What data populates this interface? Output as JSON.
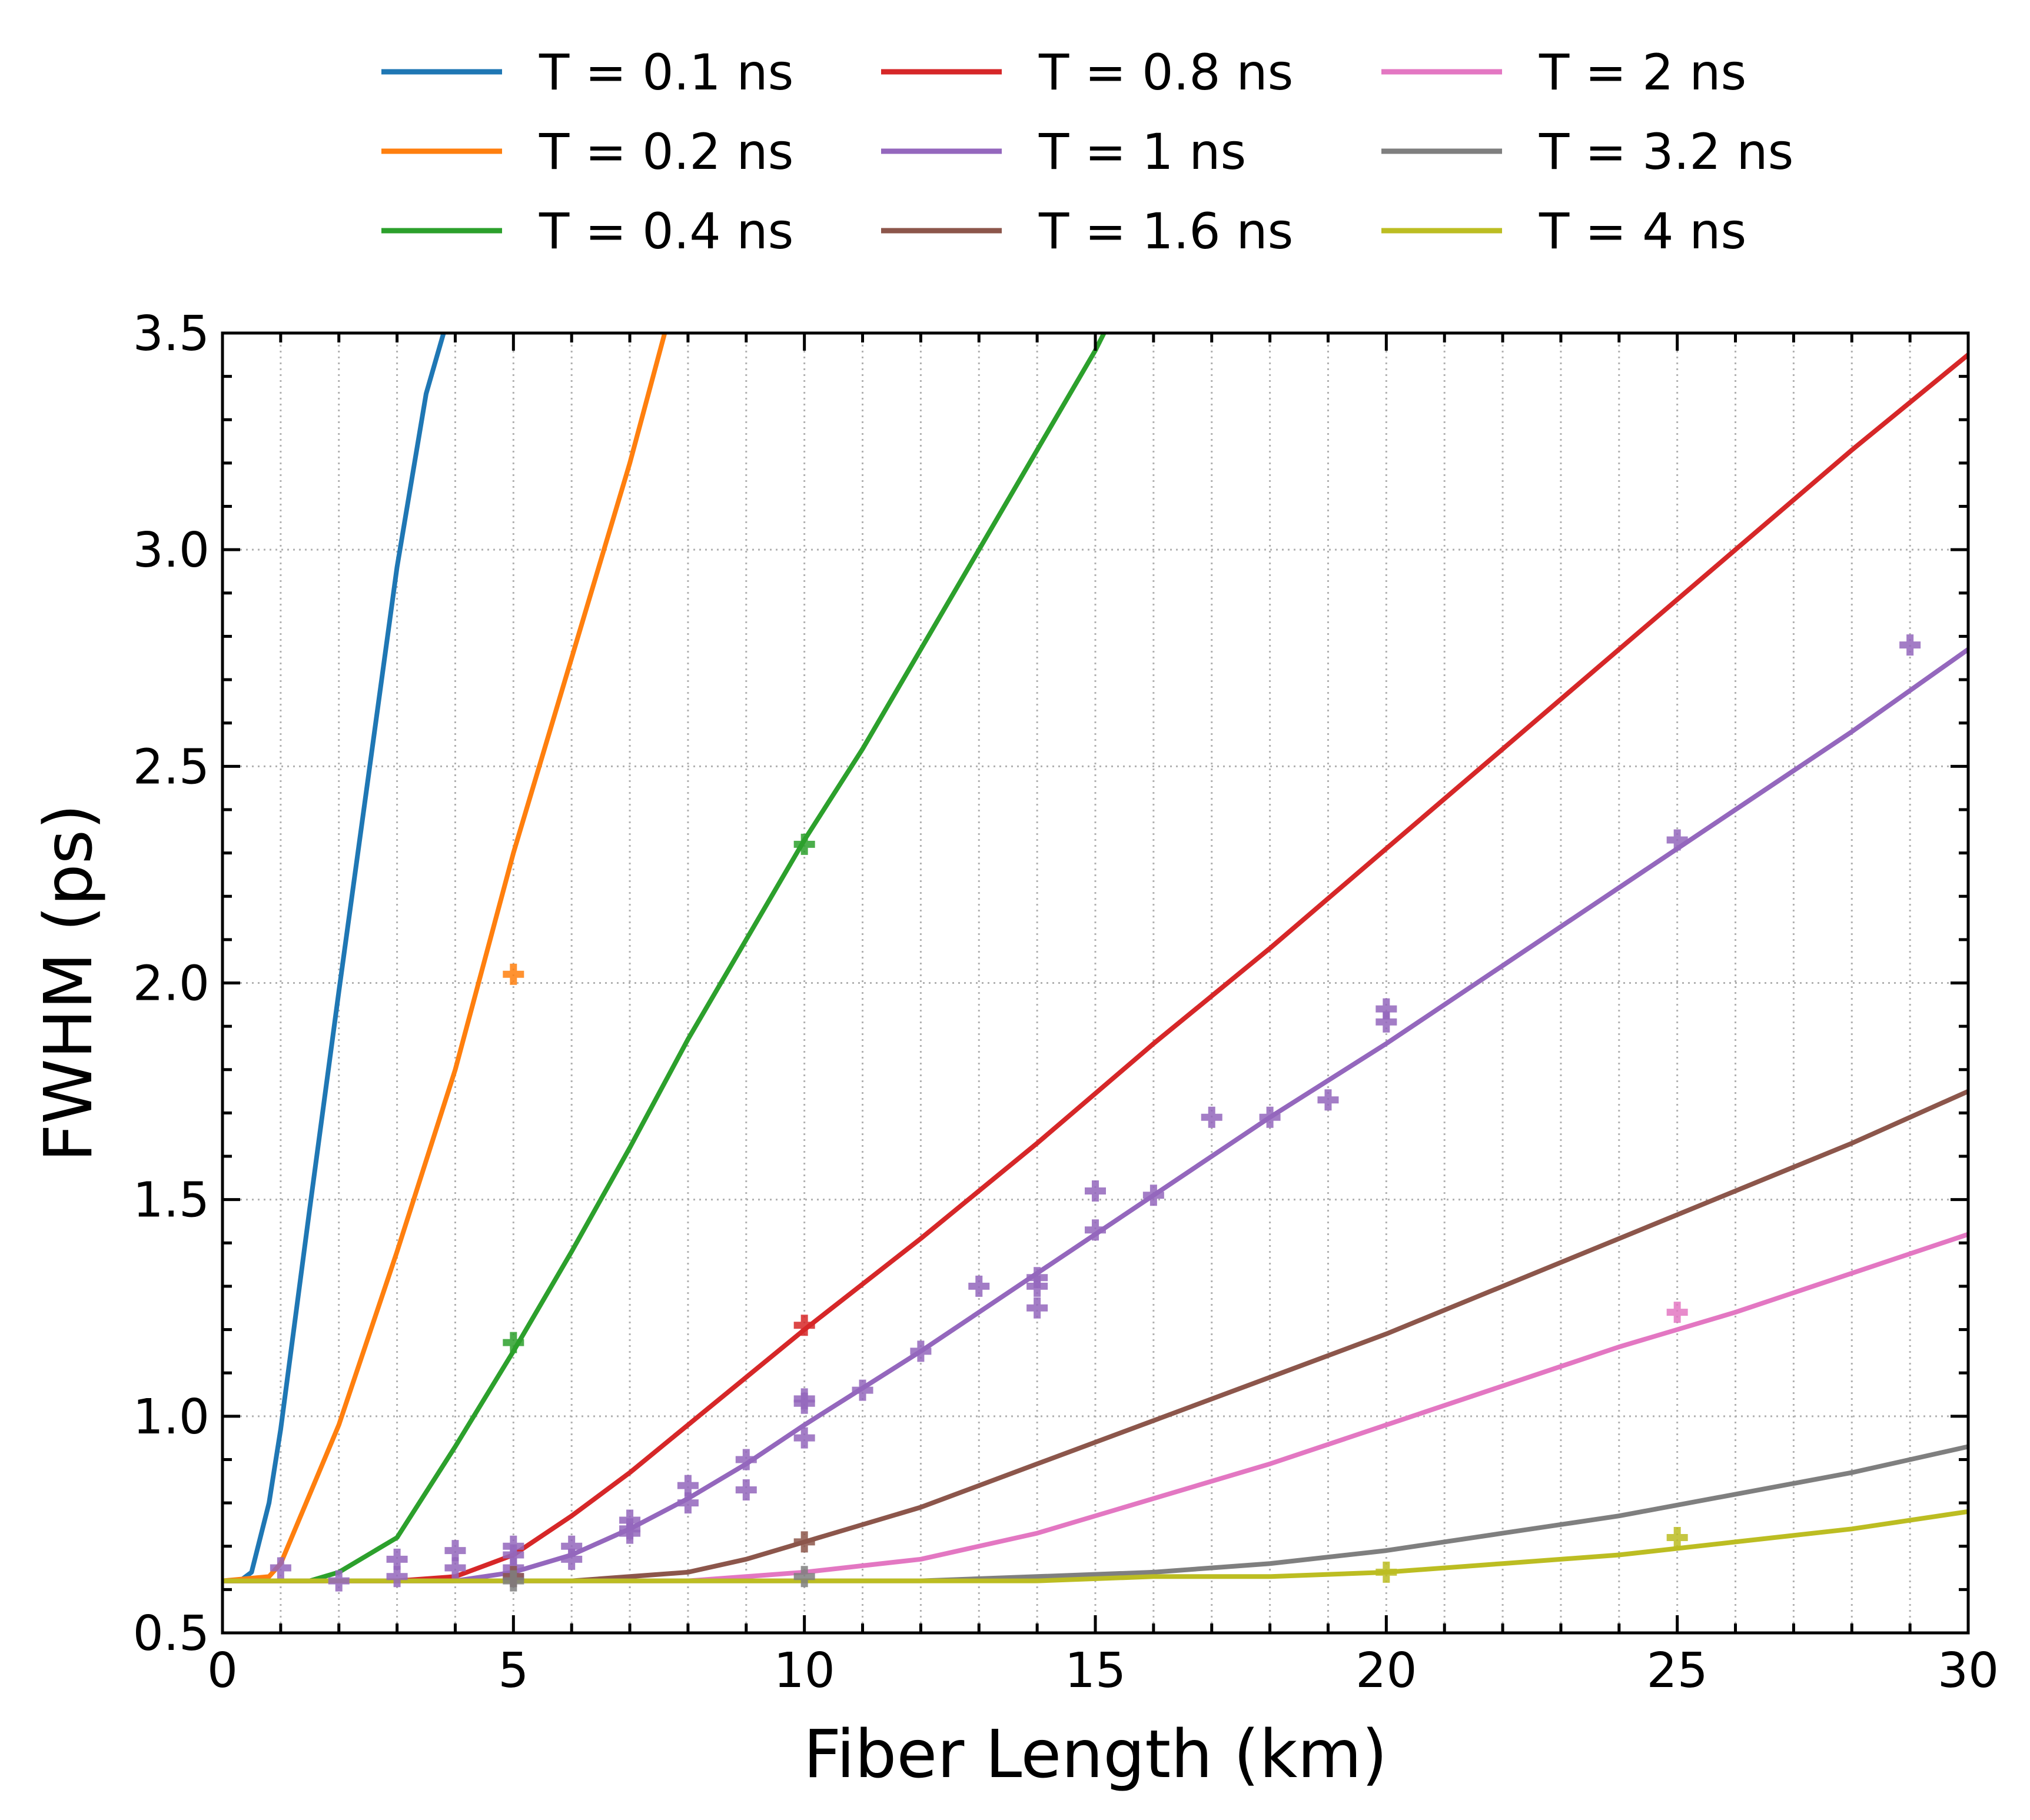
{
  "chart_data": {
    "type": "line",
    "title": "",
    "xlabel": "Fiber Length (km)",
    "ylabel": "FWHM (ps)",
    "xlim": [
      0,
      30
    ],
    "ylim": [
      0.5,
      3.5
    ],
    "xticks": [
      0,
      5,
      10,
      15,
      20,
      25,
      30
    ],
    "xtick_labels": [
      "0",
      "5",
      "10",
      "15",
      "20",
      "25",
      "30"
    ],
    "yticks": [
      0.5,
      1.0,
      1.5,
      2.0,
      2.5,
      3.0,
      3.5
    ],
    "ytick_labels": [
      "0.5",
      "1.0",
      "1.5",
      "2.0",
      "2.5",
      "3.0",
      "3.5"
    ],
    "grid": true,
    "legend_position": "top, outside plot, 3 columns",
    "series": [
      {
        "name": "T = 0.1 ns",
        "color": "#1f77b4",
        "line": {
          "x": [
            0,
            0.3,
            0.5,
            0.8,
            1.0,
            1.5,
            2.0,
            2.5,
            3.0,
            3.5,
            3.8
          ],
          "y": [
            0.62,
            0.62,
            0.64,
            0.8,
            0.97,
            1.48,
            1.98,
            2.47,
            2.96,
            3.36,
            3.5
          ]
        },
        "markers": {
          "x": [],
          "y": []
        }
      },
      {
        "name": "T = 0.2 ns",
        "color": "#ff7f0e",
        "line": {
          "x": [
            0,
            0.8,
            1.0,
            1.5,
            2.0,
            3.0,
            4.0,
            5.0,
            6.0,
            7.0,
            7.6
          ],
          "y": [
            0.62,
            0.63,
            0.66,
            0.82,
            0.98,
            1.38,
            1.8,
            2.3,
            2.75,
            3.2,
            3.5
          ]
        },
        "markers": {
          "x": [
            5
          ],
          "y": [
            2.02
          ]
        }
      },
      {
        "name": "T = 0.4 ns",
        "color": "#2ca02c",
        "line": {
          "x": [
            0,
            1.5,
            2.0,
            3.0,
            4.0,
            5.0,
            6.0,
            7.0,
            8.0,
            9.0,
            10.0,
            11.0,
            12.0,
            13.0,
            14.0,
            15.0,
            15.15
          ],
          "y": [
            0.62,
            0.62,
            0.64,
            0.72,
            0.93,
            1.15,
            1.38,
            1.62,
            1.87,
            2.1,
            2.33,
            2.54,
            2.77,
            3.0,
            3.23,
            3.46,
            3.5
          ]
        },
        "markers": {
          "x": [
            5,
            10
          ],
          "y": [
            1.17,
            2.32
          ]
        }
      },
      {
        "name": "T = 0.8 ns",
        "color": "#d62728",
        "line": {
          "x": [
            0,
            3,
            4,
            5,
            6,
            7,
            8,
            9,
            10,
            12,
            14,
            16,
            18,
            20,
            22,
            24,
            26,
            28,
            30
          ],
          "y": [
            0.62,
            0.62,
            0.63,
            0.68,
            0.77,
            0.87,
            0.98,
            1.09,
            1.2,
            1.41,
            1.63,
            1.86,
            2.08,
            2.31,
            2.54,
            2.77,
            3.0,
            3.23,
            3.45
          ]
        },
        "markers": {
          "x": [
            10
          ],
          "y": [
            1.21
          ]
        }
      },
      {
        "name": "T = 1 ns",
        "color": "#9467bd",
        "line": {
          "x": [
            0,
            4,
            5,
            6,
            7,
            8,
            9,
            10,
            12,
            14,
            16,
            18,
            20,
            22,
            24,
            26,
            28,
            30
          ],
          "y": [
            0.62,
            0.62,
            0.64,
            0.68,
            0.74,
            0.81,
            0.89,
            0.98,
            1.15,
            1.33,
            1.51,
            1.69,
            1.86,
            2.04,
            2.22,
            2.4,
            2.58,
            2.77
          ]
        },
        "markers": {
          "x": [
            1,
            2,
            3,
            3,
            4,
            4,
            5,
            5,
            5,
            5,
            6,
            6,
            7,
            7,
            7,
            8,
            8,
            9,
            9,
            10,
            10,
            10,
            11,
            12,
            13,
            14,
            14,
            14,
            15,
            15,
            16,
            17,
            18,
            19,
            20,
            20,
            25,
            29
          ],
          "y": [
            0.65,
            0.62,
            0.67,
            0.63,
            0.69,
            0.65,
            0.7,
            0.68,
            0.65,
            0.63,
            0.7,
            0.67,
            0.76,
            0.74,
            0.73,
            0.84,
            0.8,
            0.9,
            0.83,
            1.04,
            1.03,
            0.95,
            1.06,
            1.15,
            1.3,
            1.32,
            1.3,
            1.25,
            1.52,
            1.43,
            1.51,
            1.69,
            1.69,
            1.73,
            1.94,
            1.91,
            2.33,
            2.78
          ]
        }
      },
      {
        "name": "T = 1.6 ns",
        "color": "#8c564b",
        "line": {
          "x": [
            0,
            6,
            7,
            8,
            9,
            10,
            12,
            14,
            16,
            18,
            20,
            22,
            24,
            26,
            28,
            30
          ],
          "y": [
            0.62,
            0.62,
            0.63,
            0.64,
            0.67,
            0.71,
            0.79,
            0.89,
            0.99,
            1.09,
            1.19,
            1.3,
            1.41,
            1.52,
            1.63,
            1.75
          ]
        },
        "markers": {
          "x": [
            5,
            10
          ],
          "y": [
            0.63,
            0.71
          ]
        }
      },
      {
        "name": "T = 2 ns",
        "color": "#e377c2",
        "line": {
          "x": [
            0,
            8,
            10,
            12,
            14,
            16,
            18,
            20,
            22,
            24,
            26,
            28,
            30
          ],
          "y": [
            0.62,
            0.62,
            0.64,
            0.67,
            0.73,
            0.81,
            0.89,
            0.98,
            1.07,
            1.16,
            1.24,
            1.33,
            1.42
          ]
        },
        "markers": {
          "x": [
            25
          ],
          "y": [
            1.24
          ]
        }
      },
      {
        "name": "T = 3.2 ns",
        "color": "#7f7f7f",
        "line": {
          "x": [
            0,
            12,
            14,
            16,
            18,
            20,
            22,
            24,
            26,
            28,
            30
          ],
          "y": [
            0.62,
            0.62,
            0.63,
            0.64,
            0.66,
            0.69,
            0.73,
            0.77,
            0.82,
            0.87,
            0.93
          ]
        },
        "markers": {
          "x": [
            5,
            10
          ],
          "y": [
            0.62,
            0.63
          ]
        }
      },
      {
        "name": "T = 4 ns",
        "color": "#bcbd22",
        "line": {
          "x": [
            0,
            14,
            16,
            18,
            20,
            22,
            24,
            26,
            28,
            30
          ],
          "y": [
            0.62,
            0.62,
            0.63,
            0.63,
            0.64,
            0.66,
            0.68,
            0.71,
            0.74,
            0.78
          ]
        },
        "markers": {
          "x": [
            20,
            25
          ],
          "y": [
            0.64,
            0.72
          ]
        }
      }
    ]
  }
}
